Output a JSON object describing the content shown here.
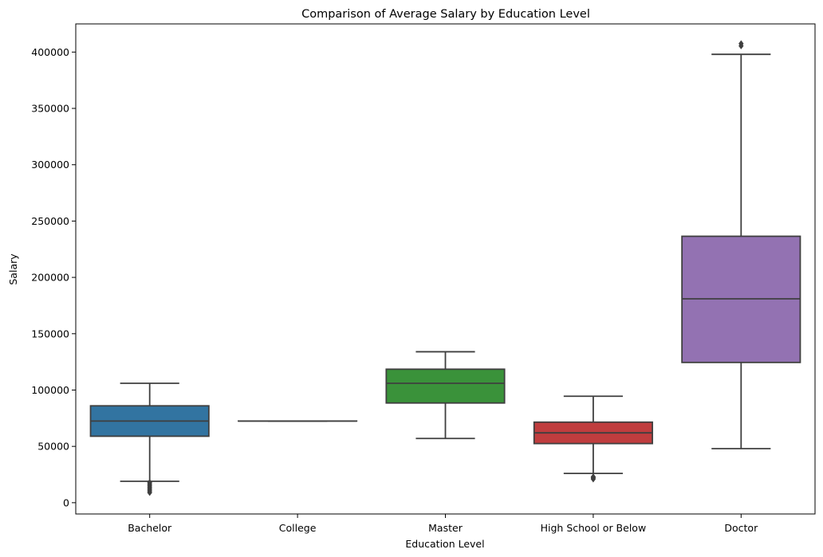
{
  "chart_data": {
    "type": "box",
    "title": "Comparison of Average Salary by Education Level",
    "xlabel": "Education Level",
    "ylabel": "Salary",
    "ylim": [
      -10000,
      425000
    ],
    "yticks": [
      0,
      50000,
      100000,
      150000,
      200000,
      250000,
      300000,
      350000,
      400000
    ],
    "ytick_labels": [
      "0",
      "50000",
      "100000",
      "150000",
      "200000",
      "250000",
      "300000",
      "350000",
      "400000"
    ],
    "grid": false,
    "categories": [
      "Bachelor",
      "College",
      "Master",
      "High School or Below",
      "Doctor"
    ],
    "boxes": [
      {
        "category": "Bachelor",
        "color": "#3274a1",
        "whisker_low": 19000,
        "q1": 59000,
        "median": 72500,
        "q3": 86000,
        "whisker_high": 106000,
        "outliers": [
          9000,
          10500,
          12000,
          13500,
          15000,
          16500,
          18000
        ]
      },
      {
        "category": "College",
        "color": "#e1812c",
        "whisker_low": 72500,
        "q1": 72500,
        "median": 72500,
        "q3": 72500,
        "whisker_high": 72500,
        "outliers": []
      },
      {
        "category": "Master",
        "color": "#3a923a",
        "whisker_low": 57000,
        "q1": 88500,
        "median": 106000,
        "q3": 118500,
        "whisker_high": 134000,
        "outliers": []
      },
      {
        "category": "High School or Below",
        "color": "#c03d3e",
        "whisker_low": 26000,
        "q1": 52500,
        "median": 62000,
        "q3": 71500,
        "whisker_high": 94500,
        "outliers": [
          21000,
          22000,
          23000
        ]
      },
      {
        "category": "Doctor",
        "color": "#9372b2",
        "whisker_low": 48000,
        "q1": 124500,
        "median": 181000,
        "q3": 236500,
        "whisker_high": 398000,
        "outliers": [
          405500,
          407500
        ]
      }
    ]
  }
}
